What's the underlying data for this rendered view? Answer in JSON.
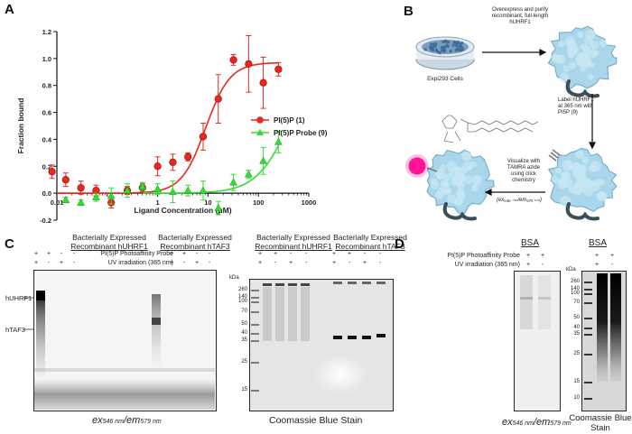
{
  "panels": {
    "a": "A",
    "b": "B",
    "c": "C",
    "d": "D"
  },
  "panel_b": {
    "cells_label": "Expi293 Cells",
    "step1": "Overexpress and purify recombinant, full-length hUHRF1",
    "step2": "Label hUHRF1 at 365 nm with PI5P (9)",
    "step3": "Visualize with TAMRA azide using click chemistry",
    "step3_sub": "(ex₅₄₆ ₙₘ/em₅₇₉ ₙₘ)"
  },
  "panel_c": {
    "row_probe": "PI(5)P Photoaffinity Probe",
    "row_uv": "UV irradiation (365 nm)",
    "group1_line1": "Bacterially Expressed",
    "group1_line2": "Recombinant hUHRF1",
    "group2_line1": "Bacterially Expressed",
    "group2_line2": "Recombinant hTAF3",
    "probe_signs": [
      "+",
      "+",
      "-",
      "-"
    ],
    "uv_signs": [
      "+",
      "-",
      "+",
      "-"
    ],
    "band_huhrf1": "hUHRF1",
    "band_htaf3": "hTAF3",
    "kda": "kDa",
    "markers": [
      "260",
      "140",
      "100",
      "70",
      "50",
      "40",
      "35",
      "25",
      "15"
    ],
    "caption_left": "ex546 nm/em579 nm",
    "caption_right": "Coomassie Blue Stain"
  },
  "panel_d": {
    "title": "BSA",
    "row_probe": "PI(5)P Photoaffinity Probe",
    "row_uv": "UV irradiation (365 nm)",
    "probe_signs": [
      "+",
      "+"
    ],
    "uv_signs": [
      "+",
      "-"
    ],
    "kda": "kDa",
    "markers": [
      "260",
      "140",
      "100",
      "70",
      "50",
      "40",
      "35",
      "25",
      "15",
      "10"
    ],
    "caption_left": "ex546 nm/em579 nm",
    "caption_right_line1": "Coomassie Blue",
    "caption_right_line2": "Stain"
  },
  "chart_data": {
    "type": "scatter",
    "xlabel": "Ligand Concentration (μM)",
    "ylabel": "Fraction bound",
    "x_scale": "log",
    "xlim": [
      0.01,
      1000
    ],
    "ylim": [
      -0.2,
      1.2
    ],
    "x_ticks": [
      {
        "v": 0.01,
        "t": "0.01"
      },
      {
        "v": 1,
        "t": "1"
      },
      {
        "v": 10,
        "t": "10"
      },
      {
        "v": 100,
        "t": "100"
      },
      {
        "v": 1000,
        "t": "1000"
      }
    ],
    "y_ticks": [
      -0.2,
      0.0,
      0.2,
      0.4,
      0.6,
      0.8,
      1.0,
      1.2
    ],
    "grid": false,
    "legend_position": "middle-right",
    "series": [
      {
        "name": "PI(5)P (1)",
        "color": "#e8271f",
        "marker": "circle",
        "x": [
          0.008,
          0.015,
          0.03,
          0.06,
          0.12,
          0.25,
          0.5,
          1.0,
          2.0,
          4.0,
          8.0,
          16,
          32,
          64,
          125,
          250
        ],
        "y": [
          0.16,
          0.1,
          0.04,
          0.02,
          -0.07,
          0.02,
          0.04,
          0.2,
          0.23,
          0.27,
          0.42,
          0.7,
          0.99,
          0.96,
          0.82,
          0.92
        ],
        "err": [
          0.05,
          0.05,
          0.05,
          0.04,
          0.04,
          0.03,
          0.03,
          0.07,
          0.06,
          0.03,
          0.1,
          0.18,
          0.04,
          0.21,
          0.19,
          0.05
        ],
        "fit": {
          "model": "hill",
          "top": 0.97,
          "ec50": 9.0,
          "hill": 1.8
        }
      },
      {
        "name": "PI(5)P Probe (9)",
        "color": "#33dd33",
        "marker": "triangle",
        "x": [
          0.015,
          0.03,
          0.06,
          0.12,
          0.25,
          0.5,
          1.0,
          2.0,
          4.0,
          8.0,
          16,
          32,
          64,
          125,
          250
        ],
        "y": [
          -0.05,
          -0.07,
          -0.03,
          -0.02,
          0.02,
          0.05,
          0.03,
          0.01,
          0.02,
          0.02,
          -0.11,
          0.08,
          0.14,
          0.24,
          0.38
        ],
        "err": [
          0.02,
          0.02,
          0.03,
          0.06,
          0.05,
          0.03,
          0.04,
          0.08,
          0.04,
          0.07,
          0.05,
          0.06,
          0.03,
          0.1,
          0.08
        ],
        "fit": {
          "model": "hill",
          "top": 1.0,
          "ec50": 400,
          "hill": 1.3
        }
      }
    ]
  }
}
